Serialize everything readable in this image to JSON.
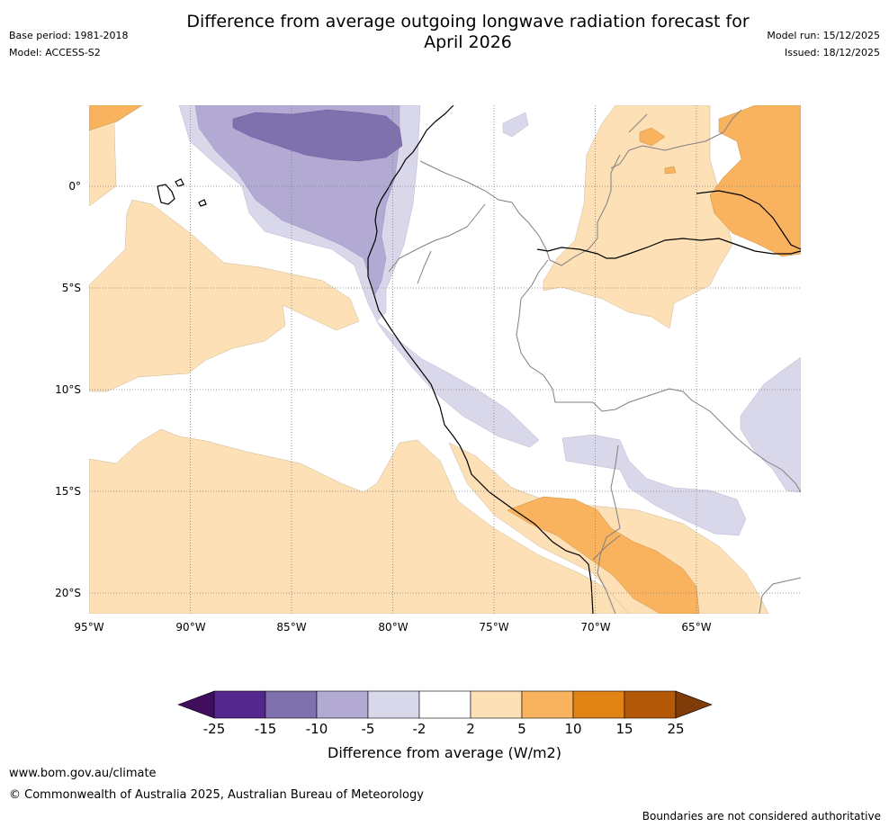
{
  "header": {
    "title_line1": "Difference from average outgoing longwave radiation forecast for",
    "title_line2": "April 2026",
    "base_period": "Base period: 1981-2018",
    "model": "Model: ACCESS-S2",
    "model_run": "Model run: 15/12/2025",
    "issued": "Issued: 18/12/2025"
  },
  "map": {
    "lat_labels": [
      "0°",
      "5°S",
      "10°S",
      "15°S",
      "20°S"
    ],
    "lon_labels": [
      "95°W",
      "90°W",
      "85°W",
      "80°W",
      "75°W",
      "70°W",
      "65°W"
    ],
    "colors": {
      "pale_orange": "#fde0b6",
      "orange": "#f9b35f",
      "pale_purple": "#d9d8ea",
      "light_purple": "#b2aad3",
      "mid_purple": "#7e71ad",
      "coast": "#000000",
      "border": "#808080"
    }
  },
  "legend": {
    "title": "Difference from average (W/m2)",
    "ticks": [
      "-25",
      "-15",
      "-10",
      "-5",
      "-2",
      "2",
      "5",
      "10",
      "15",
      "25"
    ],
    "colors": [
      "#3f0f5e",
      "#54278f",
      "#7e71ad",
      "#b2aad3",
      "#d9d8ea",
      "#ffffff",
      "#fde0b6",
      "#f9b35f",
      "#e08214",
      "#b35806",
      "#7f3b08"
    ]
  },
  "footer": {
    "website": "www.bom.gov.au/climate",
    "copyright": "© Commonwealth of Australia 2025, Australian Bureau of Meteorology",
    "disclaimer": "Boundaries are not considered authoritative"
  }
}
